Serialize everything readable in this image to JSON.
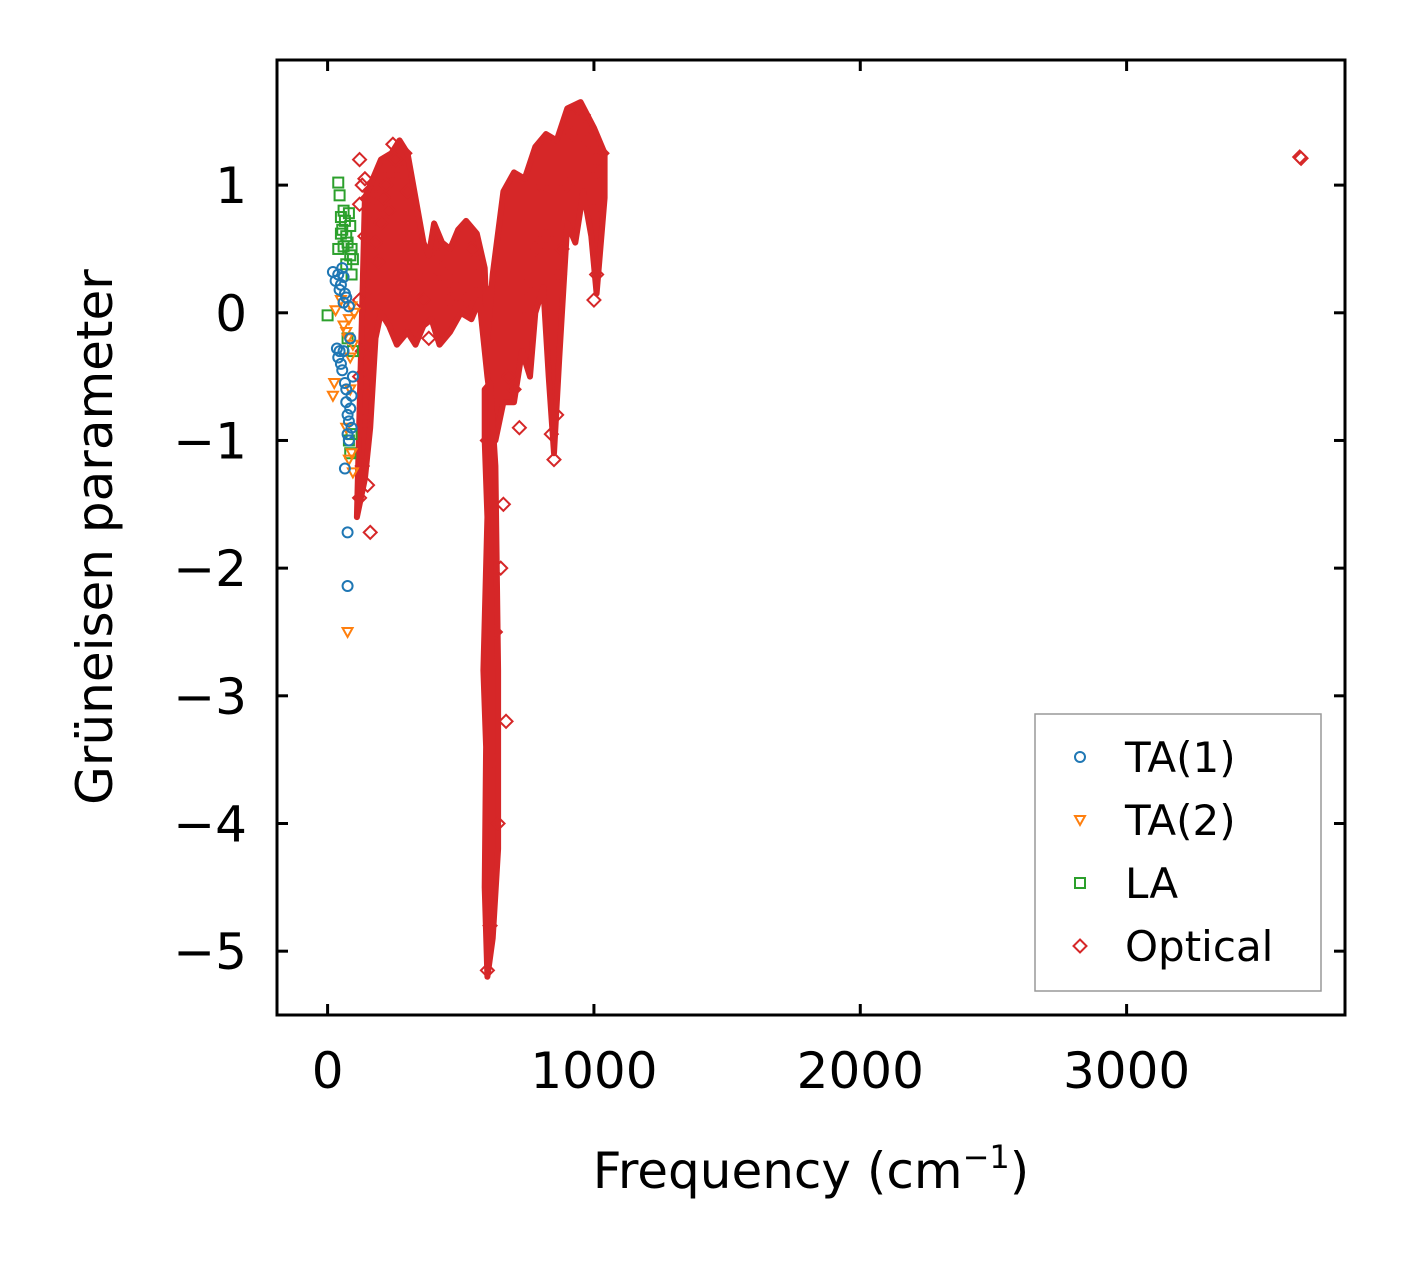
{
  "chart_data": {
    "type": "scatter",
    "xlabel": "Frequency (cm",
    "xlabel_sup": "−1",
    "xlabel_end": ")",
    "ylabel": "Grüneisen parameter",
    "xlim": [
      -190,
      3820
    ],
    "ylim": [
      -5.5,
      1.98
    ],
    "xticks": [
      0,
      1000,
      2000,
      3000
    ],
    "xtick_labels": [
      "0",
      "1000",
      "2000",
      "3000"
    ],
    "yticks": [
      1,
      0,
      -1,
      -2,
      -3,
      -4,
      -5
    ],
    "ytick_labels": [
      "1",
      "0",
      "−1",
      "−2",
      "−3",
      "−4",
      "−5"
    ],
    "grid": false,
    "legend_position": "lower-right",
    "series": [
      {
        "name": "TA(1)",
        "marker": "circle",
        "color": "#1f77b4",
        "points": [
          [
            20,
            0.32
          ],
          [
            30,
            0.25
          ],
          [
            40,
            0.3
          ],
          [
            45,
            0.18
          ],
          [
            50,
            0.22
          ],
          [
            55,
            0.35
          ],
          [
            60,
            0.28
          ],
          [
            35,
            -0.28
          ],
          [
            40,
            -0.35
          ],
          [
            45,
            -0.3
          ],
          [
            50,
            -0.4
          ],
          [
            55,
            -0.45
          ],
          [
            60,
            -0.3
          ],
          [
            65,
            -0.55
          ],
          [
            70,
            -0.6
          ],
          [
            70,
            -0.7
          ],
          [
            75,
            -0.8
          ],
          [
            75,
            -0.95
          ],
          [
            80,
            -1.0
          ],
          [
            80,
            -0.85
          ],
          [
            85,
            -0.75
          ],
          [
            90,
            -0.65
          ],
          [
            65,
            -1.22
          ],
          [
            75,
            -1.72
          ],
          [
            75,
            -2.14
          ],
          [
            70,
            0.12
          ],
          [
            80,
            0.05
          ],
          [
            85,
            -0.2
          ],
          [
            90,
            -0.9
          ],
          [
            60,
            0.08
          ],
          [
            65,
            0.15
          ],
          [
            95,
            -0.5
          ]
        ]
      },
      {
        "name": "TA(2)",
        "marker": "triangle-down",
        "color": "#ff7f0e",
        "points": [
          [
            20,
            -0.65
          ],
          [
            25,
            -0.55
          ],
          [
            30,
            0.02
          ],
          [
            50,
            0.1
          ],
          [
            60,
            -0.1
          ],
          [
            70,
            -0.15
          ],
          [
            75,
            -0.2
          ],
          [
            80,
            -0.05
          ],
          [
            85,
            -0.35
          ],
          [
            90,
            0.05
          ],
          [
            95,
            -0.25
          ],
          [
            100,
            0.0
          ],
          [
            90,
            -1.1
          ],
          [
            95,
            -1.25
          ],
          [
            80,
            -1.15
          ],
          [
            70,
            -0.9
          ],
          [
            75,
            -2.5
          ],
          [
            85,
            -0.6
          ]
        ]
      },
      {
        "name": "LA",
        "marker": "square",
        "color": "#2ca02c",
        "points": [
          [
            0,
            -0.02
          ],
          [
            40,
            1.02
          ],
          [
            45,
            0.92
          ],
          [
            50,
            0.75
          ],
          [
            55,
            0.65
          ],
          [
            60,
            0.8
          ],
          [
            65,
            0.72
          ],
          [
            70,
            0.6
          ],
          [
            75,
            0.55
          ],
          [
            80,
            0.78
          ],
          [
            85,
            0.68
          ],
          [
            85,
            0.45
          ],
          [
            90,
            0.3
          ],
          [
            95,
            0.42
          ],
          [
            90,
            0.5
          ],
          [
            40,
            0.5
          ],
          [
            50,
            0.62
          ],
          [
            60,
            0.52
          ],
          [
            70,
            0.38
          ],
          [
            80,
            -1.0
          ],
          [
            90,
            -0.95
          ],
          [
            95,
            -0.3
          ],
          [
            85,
            -1.1
          ],
          [
            75,
            -0.2
          ]
        ]
      },
      {
        "name": "Optical",
        "marker": "diamond",
        "color": "#d62728",
        "points": [
          [
            120,
            1.2
          ],
          [
            120,
            0.85
          ],
          [
            120,
            0.1
          ],
          [
            120,
            -0.5
          ],
          [
            120,
            -1.45
          ],
          [
            130,
            1.0
          ],
          [
            130,
            -0.3
          ],
          [
            130,
            -1.2
          ],
          [
            140,
            1.05
          ],
          [
            140,
            0.6
          ],
          [
            140,
            -0.85
          ],
          [
            150,
            0.9
          ],
          [
            150,
            -1.35
          ],
          [
            160,
            0.95
          ],
          [
            160,
            0.2
          ],
          [
            160,
            -1.72
          ],
          [
            170,
            0.8
          ],
          [
            180,
            0.55
          ],
          [
            190,
            0.4
          ],
          [
            200,
            0.7
          ],
          [
            210,
            0.9
          ],
          [
            220,
            1.0
          ],
          [
            230,
            0.8
          ],
          [
            240,
            1.1
          ],
          [
            245,
            1.32
          ],
          [
            255,
            1.2
          ],
          [
            265,
            1.28
          ],
          [
            280,
            1.1
          ],
          [
            290,
            1.25
          ],
          [
            300,
            0.95
          ],
          [
            320,
            0.6
          ],
          [
            340,
            0.3
          ],
          [
            360,
            0.1
          ],
          [
            380,
            -0.2
          ],
          [
            400,
            0.25
          ],
          [
            420,
            0.45
          ],
          [
            440,
            0.3
          ],
          [
            460,
            0.1
          ],
          [
            480,
            0.2
          ],
          [
            500,
            0.05
          ],
          [
            520,
            0.1
          ],
          [
            540,
            0.5
          ],
          [
            560,
            0.4
          ],
          [
            580,
            0.2
          ],
          [
            600,
            -5.15
          ],
          [
            600,
            -1.0
          ],
          [
            610,
            -4.8
          ],
          [
            620,
            -3.5
          ],
          [
            630,
            -2.5
          ],
          [
            640,
            -4.0
          ],
          [
            650,
            -2.0
          ],
          [
            660,
            -1.5
          ],
          [
            670,
            -3.2
          ],
          [
            680,
            -0.5
          ],
          [
            700,
            -0.6
          ],
          [
            720,
            -0.9
          ],
          [
            740,
            0.2
          ],
          [
            760,
            0.0
          ],
          [
            780,
            0.5
          ],
          [
            800,
            1.0
          ],
          [
            820,
            0.6
          ],
          [
            840,
            -0.95
          ],
          [
            850,
            -1.15
          ],
          [
            860,
            -0.8
          ],
          [
            870,
            0.3
          ],
          [
            880,
            0.5
          ],
          [
            900,
            1.0
          ],
          [
            920,
            1.4
          ],
          [
            940,
            1.6
          ],
          [
            960,
            1.55
          ],
          [
            980,
            1.35
          ],
          [
            1000,
            0.8
          ],
          [
            1010,
            1.2
          ],
          [
            1020,
            1.1
          ],
          [
            1030,
            1.25
          ],
          [
            1000,
            0.1
          ],
          [
            1010,
            0.3
          ],
          [
            3650,
            1.22
          ],
          [
            3655,
            1.21
          ]
        ]
      }
    ]
  }
}
